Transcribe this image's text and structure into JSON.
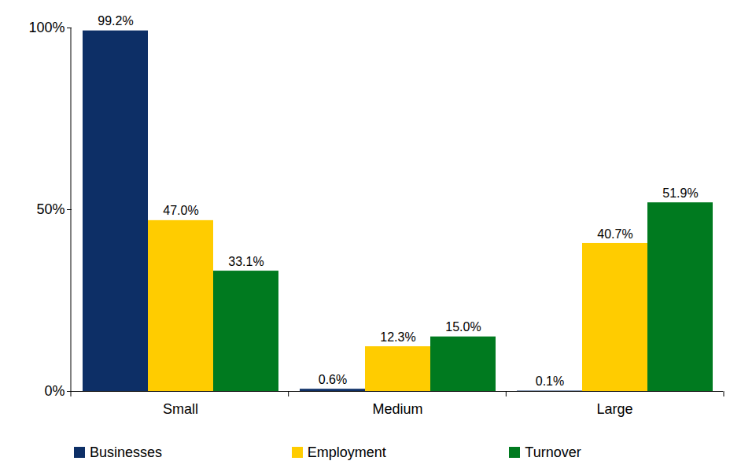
{
  "chart_data": {
    "type": "bar",
    "categories": [
      "Small",
      "Medium",
      "Large"
    ],
    "series": [
      {
        "name": "Businesses",
        "color": "#0d2f66",
        "values": [
          99.2,
          0.6,
          0.1
        ],
        "value_labels": [
          "99.2%",
          "0.6%",
          "0.1%"
        ]
      },
      {
        "name": "Employment",
        "color": "#ffcc00",
        "values": [
          47.0,
          12.3,
          40.7
        ],
        "value_labels": [
          "47.0%",
          "12.3%",
          "40.7%"
        ]
      },
      {
        "name": "Turnover",
        "color": "#007a1f",
        "values": [
          33.1,
          15.0,
          51.9
        ],
        "value_labels": [
          "33.1%",
          "15.0%",
          "51.9%"
        ]
      }
    ],
    "ylim": [
      0,
      100
    ],
    "yticks": [
      {
        "value": 0,
        "label": "0%"
      },
      {
        "value": 50,
        "label": "50%"
      },
      {
        "value": 100,
        "label": "100%"
      }
    ],
    "grid": false,
    "data_labels": true,
    "legend": "bottom"
  }
}
